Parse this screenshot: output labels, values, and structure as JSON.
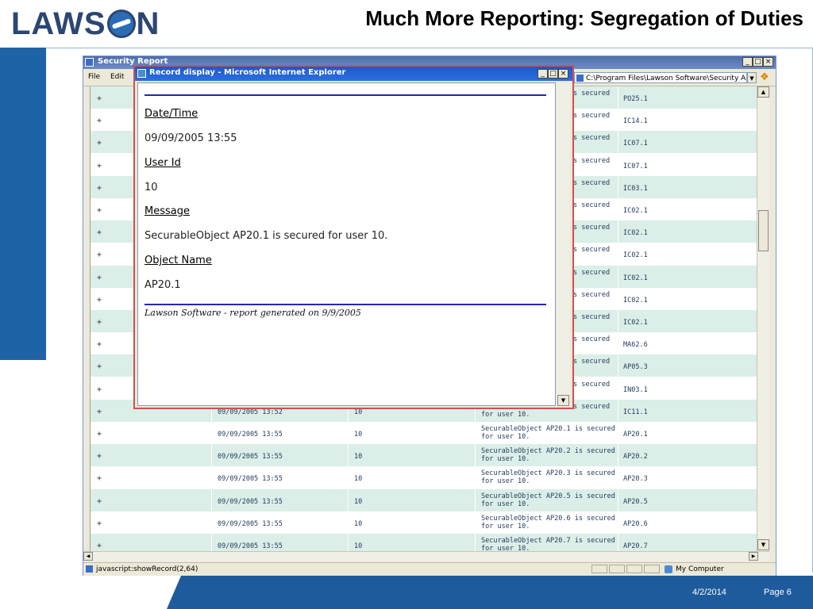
{
  "slide": {
    "logo_left": "LAWS",
    "logo_right": "N",
    "title": "Much More Reporting: Segregation of Duties",
    "footer_date": "4/2/2014",
    "footer_page": "Page 6"
  },
  "window": {
    "title": "Security Report",
    "menu": [
      "File",
      "Edit"
    ],
    "address": "C:\\Program Files\\Lawson Software\\Security A",
    "status_text": "javascript:showRecord(2,64)",
    "status_zone": "My Computer",
    "buttons": {
      "minimize": "_",
      "maximize": "□",
      "close": "×"
    }
  },
  "table": {
    "rows": [
      {
        "plus": "+",
        "date": "",
        "user": "",
        "msg_tail": "s secured",
        "msg": "",
        "object": "PO25.1",
        "hidden": true
      },
      {
        "plus": "+",
        "date": "",
        "user": "",
        "msg_tail": "s secured",
        "msg": "",
        "object": "IC14.1",
        "hidden": true
      },
      {
        "plus": "+",
        "date": "",
        "user": "",
        "msg_tail": "s secured",
        "msg": "",
        "object": "IC07.1",
        "hidden": true
      },
      {
        "plus": "+",
        "date": "",
        "user": "",
        "msg_tail": "s secured",
        "msg": "",
        "object": "IC07.1",
        "hidden": true
      },
      {
        "plus": "+",
        "date": "",
        "user": "",
        "msg_tail": "s secured",
        "msg": "",
        "object": "IC03.1",
        "hidden": true
      },
      {
        "plus": "+",
        "date": "",
        "user": "",
        "msg_tail": "s secured",
        "msg": "",
        "object": "IC02.1",
        "hidden": true
      },
      {
        "plus": "+",
        "date": "",
        "user": "",
        "msg_tail": "s secured",
        "msg": "",
        "object": "IC02.1",
        "hidden": true
      },
      {
        "plus": "+",
        "date": "",
        "user": "",
        "msg_tail": "s secured",
        "msg": "",
        "object": "IC02.1",
        "hidden": true
      },
      {
        "plus": "+",
        "date": "",
        "user": "",
        "msg_tail": "s secured",
        "msg": "",
        "object": "IC02.1",
        "hidden": true
      },
      {
        "plus": "+",
        "date": "",
        "user": "",
        "msg_tail": "s secured",
        "msg": "",
        "object": "IC02.1",
        "hidden": true
      },
      {
        "plus": "+",
        "date": "",
        "user": "",
        "msg_tail": "s secured",
        "msg": "",
        "object": "IC02.1",
        "hidden": true
      },
      {
        "plus": "+",
        "date": "",
        "user": "",
        "msg_tail": "s secured",
        "msg": "",
        "object": "MA62.6",
        "hidden": true
      },
      {
        "plus": "+",
        "date": "",
        "user": "",
        "msg_tail": "s secured",
        "msg": "",
        "object": "AP05.3",
        "hidden": true
      },
      {
        "plus": "+",
        "date": "",
        "user": "",
        "msg_tail": "s secured",
        "msg": "",
        "object": "IN03.1",
        "hidden": true
      },
      {
        "plus": "+",
        "date": "09/09/2005 13:52",
        "user": "10",
        "msg_tail": "s secured",
        "msg": "for user 10.",
        "object": "IC11.1",
        "hidden": true
      },
      {
        "plus": "+",
        "date": "09/09/2005 13:55",
        "user": "10",
        "msg_tail": "",
        "msg": "SecurableObject AP20.1 is secured for user 10.",
        "object": "AP20.1",
        "hidden": false
      },
      {
        "plus": "+",
        "date": "09/09/2005 13:55",
        "user": "10",
        "msg_tail": "",
        "msg": "SecurableObject AP20.2 is secured for user 10.",
        "object": "AP20.2",
        "hidden": false
      },
      {
        "plus": "+",
        "date": "09/09/2005 13:55",
        "user": "10",
        "msg_tail": "",
        "msg": "SecurableObject AP20.3 is secured for user 10.",
        "object": "AP20.3",
        "hidden": false
      },
      {
        "plus": "+",
        "date": "09/09/2005 13:55",
        "user": "10",
        "msg_tail": "",
        "msg": "SecurableObject AP20.5 is secured for user 10.",
        "object": "AP20.5",
        "hidden": false
      },
      {
        "plus": "+",
        "date": "09/09/2005 13:55",
        "user": "10",
        "msg_tail": "",
        "msg": "SecurableObject AP20.6 is secured for user 10.",
        "object": "AP20.6",
        "hidden": false
      },
      {
        "plus": "+",
        "date": "09/09/2005 13:55",
        "user": "10",
        "msg_tail": "",
        "msg": "SecurableObject AP20.7 is secured for user 10.",
        "object": "AP20.7",
        "hidden": false
      }
    ]
  },
  "popup": {
    "title": "Record display - Microsoft Internet Explorer",
    "fields": [
      {
        "label": "Date/Time",
        "value": "09/09/2005 13:55"
      },
      {
        "label": "User Id",
        "value": "10"
      },
      {
        "label": "Message",
        "value": "SecurableObject AP20.1 is secured for user 10."
      },
      {
        "label": "Object Name",
        "value": "AP20.1"
      }
    ],
    "footer": "Lawson Software - report generated on 9/9/2005"
  },
  "colors": {
    "accent_blue": "#1e5b9c",
    "row_alt": "#dbeee8",
    "popup_rule": "#2828b0"
  },
  "icons": [
    "ie-page-icon",
    "windows-logo-icon",
    "my-computer-icon",
    "scroll-up-icon",
    "scroll-down-icon"
  ]
}
